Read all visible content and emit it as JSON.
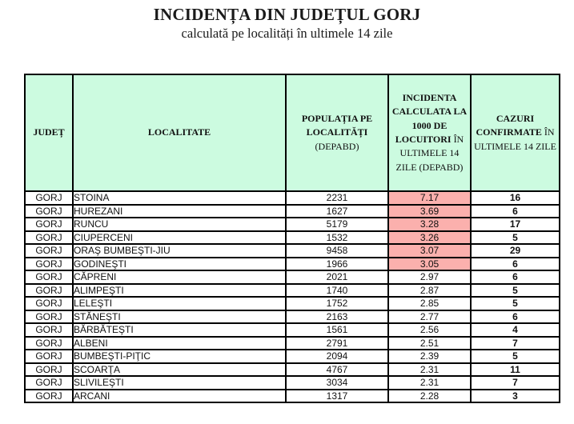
{
  "page": {
    "title": "INCIDENȚA DIN JUDEȚUL GORJ",
    "subtitle": "calculată pe localități în ultimele 14 zile"
  },
  "table": {
    "colors": {
      "header_bg": "#ccfbe0",
      "highlight_bg": "#fbb0ad",
      "border": "#000000"
    },
    "headers": {
      "judet": "JUDEȚ",
      "localitate": "LOCALITATE",
      "populatia_bold": "POPULAȚIA PE LOCALITĂȚI",
      "populatia_rest": "(DEPABD)",
      "incidenta_bold": "INCIDENTA CALCULATA LA 1000 DE LOCUITORI",
      "incidenta_rest": "ÎN ULTIMELE 14 ZILE (DEPABD)",
      "cazuri_bold": "CAZURI CONFIRMATE",
      "cazuri_rest": "ÎN ULTIMELE 14 ZILE"
    },
    "rows": [
      {
        "judet": "GORJ",
        "localitate": "STOINA",
        "populatia": "2231",
        "incidenta": "7.17",
        "cazuri": "16",
        "highlight": true
      },
      {
        "judet": "GORJ",
        "localitate": "HUREZANI",
        "populatia": "1627",
        "incidenta": "3.69",
        "cazuri": "6",
        "highlight": true
      },
      {
        "judet": "GORJ",
        "localitate": "RUNCU",
        "populatia": "5179",
        "incidenta": "3.28",
        "cazuri": "17",
        "highlight": true
      },
      {
        "judet": "GORJ",
        "localitate": "CIUPERCENI",
        "populatia": "1532",
        "incidenta": "3.26",
        "cazuri": "5",
        "highlight": true
      },
      {
        "judet": "GORJ",
        "localitate": "ORAŞ BUMBEŞTI-JIU",
        "populatia": "9458",
        "incidenta": "3.07",
        "cazuri": "29",
        "highlight": true
      },
      {
        "judet": "GORJ",
        "localitate": "GODINEŞTI",
        "populatia": "1966",
        "incidenta": "3.05",
        "cazuri": "6",
        "highlight": true
      },
      {
        "judet": "GORJ",
        "localitate": "CĂPRENI",
        "populatia": "2021",
        "incidenta": "2.97",
        "cazuri": "6",
        "highlight": false
      },
      {
        "judet": "GORJ",
        "localitate": "ALIMPEŞTI",
        "populatia": "1740",
        "incidenta": "2.87",
        "cazuri": "5",
        "highlight": false
      },
      {
        "judet": "GORJ",
        "localitate": "LELEŞTI",
        "populatia": "1752",
        "incidenta": "2.85",
        "cazuri": "5",
        "highlight": false
      },
      {
        "judet": "GORJ",
        "localitate": "STĂNEŞTI",
        "populatia": "2163",
        "incidenta": "2.77",
        "cazuri": "6",
        "highlight": false
      },
      {
        "judet": "GORJ",
        "localitate": "BĂRBĂTEŞTI",
        "populatia": "1561",
        "incidenta": "2.56",
        "cazuri": "4",
        "highlight": false
      },
      {
        "judet": "GORJ",
        "localitate": "ALBENI",
        "populatia": "2791",
        "incidenta": "2.51",
        "cazuri": "7",
        "highlight": false
      },
      {
        "judet": "GORJ",
        "localitate": "BUMBEŞTI-PIŢIC",
        "populatia": "2094",
        "incidenta": "2.39",
        "cazuri": "5",
        "highlight": false
      },
      {
        "judet": "GORJ",
        "localitate": "SCOARŢA",
        "populatia": "4767",
        "incidenta": "2.31",
        "cazuri": "11",
        "highlight": false
      },
      {
        "judet": "GORJ",
        "localitate": "SLIVILEŞTI",
        "populatia": "3034",
        "incidenta": "2.31",
        "cazuri": "7",
        "highlight": false
      },
      {
        "judet": "GORJ",
        "localitate": "ARCANI",
        "populatia": "1317",
        "incidenta": "2.28",
        "cazuri": "3",
        "highlight": false
      }
    ]
  }
}
